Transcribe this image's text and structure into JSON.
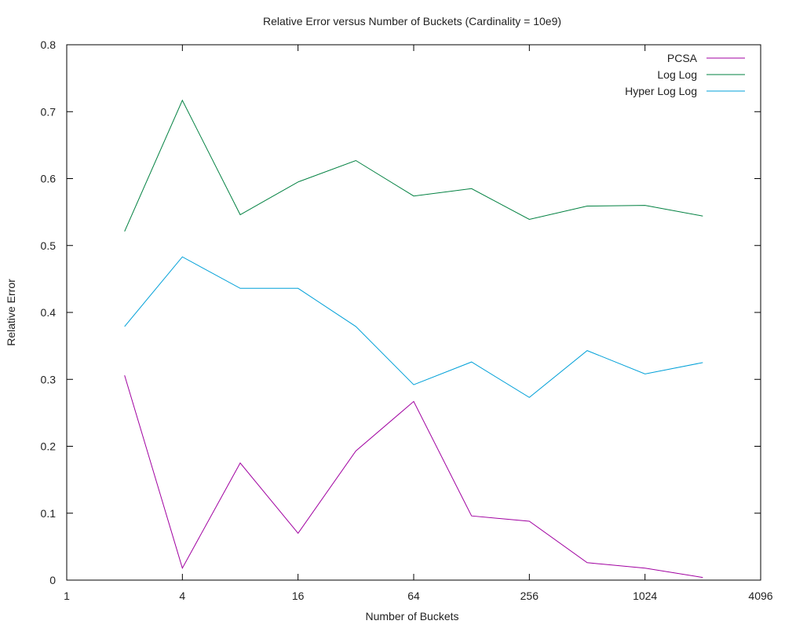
{
  "chart_data": {
    "type": "line",
    "title": "Relative Error versus Number of Buckets (Cardinality = 10e9)",
    "xlabel": "Number of Buckets",
    "ylabel": "Relative Error",
    "x_scale": "log2",
    "xlim": [
      1,
      4096
    ],
    "ylim": [
      0,
      0.8
    ],
    "x_ticks": [
      1,
      4,
      16,
      64,
      256,
      1024,
      4096
    ],
    "x_tick_labels": [
      "1",
      "4",
      "16",
      "64",
      "256",
      "1024",
      "4096"
    ],
    "y_ticks": [
      0,
      0.1,
      0.2,
      0.3,
      0.4,
      0.5,
      0.6,
      0.7,
      0.8
    ],
    "y_tick_labels": [
      "0",
      "0.1",
      "0.2",
      "0.3",
      "0.4",
      "0.5",
      "0.6",
      "0.7",
      "0.8"
    ],
    "grid": false,
    "legend_position": "top-right",
    "x": [
      2,
      4,
      8,
      16,
      32,
      64,
      128,
      256,
      512,
      1024,
      2048
    ],
    "series": [
      {
        "name": "PCSA",
        "color": "#a000a0",
        "values": [
          0.306,
          0.018,
          0.175,
          0.07,
          0.193,
          0.267,
          0.096,
          0.088,
          0.026,
          0.018,
          0.004
        ]
      },
      {
        "name": "Log Log",
        "color": "#008040",
        "values": [
          0.521,
          0.717,
          0.546,
          0.595,
          0.627,
          0.574,
          0.585,
          0.539,
          0.559,
          0.56,
          0.544
        ]
      },
      {
        "name": "Hyper Log Log",
        "color": "#00a0d8",
        "values": [
          0.379,
          0.483,
          0.436,
          0.436,
          0.379,
          0.292,
          0.326,
          0.273,
          0.343,
          0.308,
          0.325
        ]
      }
    ]
  }
}
